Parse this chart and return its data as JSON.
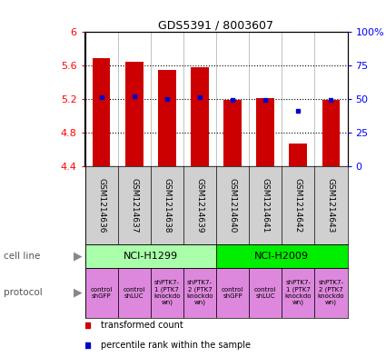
{
  "title": "GDS5391 / 8003607",
  "samples": [
    "GSM1214636",
    "GSM1214637",
    "GSM1214638",
    "GSM1214639",
    "GSM1214640",
    "GSM1214641",
    "GSM1214642",
    "GSM1214643"
  ],
  "red_values": [
    5.69,
    5.65,
    5.55,
    5.585,
    5.19,
    5.21,
    4.67,
    5.19
  ],
  "blue_values": [
    5.22,
    5.23,
    5.2,
    5.22,
    5.185,
    5.195,
    5.06,
    5.185
  ],
  "ymin": 4.4,
  "ymax": 6.0,
  "yticks": [
    4.4,
    4.8,
    5.2,
    5.6,
    6.0
  ],
  "ytick_labels": [
    "4.4",
    "4.8",
    "5.2",
    "5.6",
    "6"
  ],
  "right_yticks": [
    0,
    25,
    50,
    75,
    100
  ],
  "right_ytick_labels": [
    "0",
    "25",
    "50",
    "75",
    "100%"
  ],
  "cell_line_groups": [
    {
      "label": "NCI-H1299",
      "start": 0,
      "end": 3,
      "color": "#aaffaa"
    },
    {
      "label": "NCI-H2009",
      "start": 4,
      "end": 7,
      "color": "#00ee00"
    }
  ],
  "protocols": [
    {
      "label": "control\nshGFP"
    },
    {
      "label": "control\nshLUC"
    },
    {
      "label": "shPTK7-\n1 (PTK7\nknockdo\nwn)"
    },
    {
      "label": "shPTK7-\n2 (PTK7\nknockdo\nwn)"
    },
    {
      "label": "control\nshGFP"
    },
    {
      "label": "control\nshLUC"
    },
    {
      "label": "shPTK7-\n1 (PTK7\nknockdo\nwn)"
    },
    {
      "label": "shPTK7-\n2 (PTK7\nknockdo\nwn)"
    }
  ],
  "proto_color": "#dd88dd",
  "bar_color": "#CC0000",
  "dot_color": "#0000CC",
  "sample_bg": "#d0d0d0",
  "legend_red": "transformed count",
  "legend_blue": "percentile rank within the sample",
  "cell_line_label": "cell line",
  "protocol_label": "protocol"
}
